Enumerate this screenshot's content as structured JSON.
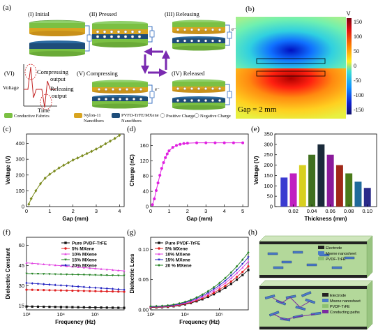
{
  "panels": {
    "a": {
      "label": "(a)",
      "stages": [
        "(I) Initial",
        "(II) Pressed",
        "(III) Releasing",
        "(IV) Released",
        "(V) Compressing",
        "(VI)"
      ],
      "signal": {
        "compressing": "Compressing\noutput",
        "releasing": "Releasing\noutput",
        "voltage": "Voltage",
        "time": "Time"
      },
      "electron": "e⁻",
      "legend": {
        "items": [
          {
            "label": "Conductive Fabrics",
            "color": "#7bc043"
          },
          {
            "label": "Nylon-11\nNanofibers",
            "color": "#d8a41f"
          },
          {
            "label": "PVFD-TrFE/MXene\nNanofibers",
            "color": "#1e4d7a"
          },
          {
            "label": "Positive Charge",
            "color": "#ffffff"
          },
          {
            "label": "Negative Charge",
            "color": "#ffffff"
          }
        ]
      }
    },
    "b": {
      "label": "(b)",
      "caption": "Gap = 2 mm",
      "colorbar": {
        "unit": "V",
        "ticks": [
          "150",
          "100",
          "50",
          "0",
          "-50",
          "-100",
          "-150"
        ]
      }
    },
    "c": {
      "label": "(c)"
    },
    "d": {
      "label": "(d)"
    },
    "e": {
      "label": "(e)"
    },
    "f": {
      "label": "(f)"
    },
    "g": {
      "label": "(g)"
    },
    "h": {
      "label": "(h)",
      "legend_top": [
        "Electrode",
        "Mxene nanosheet",
        "PVDF-TrFE"
      ],
      "legend_bottom": [
        "Electrode",
        "Mxene nanosheet",
        "PVDF-TrFE",
        "Conducting paths"
      ],
      "colors": {
        "electrode": "#222222",
        "mxene": "#4a7ac8",
        "pvdf": "#b3d89a",
        "path": "#7a2aa0"
      }
    }
  },
  "chart_data": [
    {
      "id": "c",
      "type": "line",
      "xlabel": "Gap (mm)",
      "ylabel": "Voltage (V)",
      "xlim": [
        0,
        4.2
      ],
      "ylim": [
        0,
        460
      ],
      "xticks": [
        0,
        1,
        2,
        3,
        4
      ],
      "yticks": [
        0,
        100,
        200,
        300,
        400
      ],
      "color": "#7a8a1c",
      "marker": "diamond",
      "x": [
        0.1,
        0.2,
        0.4,
        0.6,
        0.8,
        1.0,
        1.2,
        1.4,
        1.6,
        1.8,
        2.0,
        2.2,
        2.4,
        2.6,
        2.8,
        3.0,
        3.2,
        3.4,
        3.6,
        3.8,
        4.0
      ],
      "y": [
        15,
        50,
        100,
        145,
        180,
        205,
        225,
        245,
        262,
        278,
        295,
        308,
        322,
        336,
        350,
        365,
        380,
        398,
        415,
        432,
        452
      ]
    },
    {
      "id": "d",
      "type": "line",
      "xlabel": "Gap (mm)",
      "ylabel": "Charge (nC)",
      "xlim": [
        0,
        5.3
      ],
      "ylim": [
        0,
        190
      ],
      "xticks": [
        0,
        1,
        2,
        3,
        4,
        5
      ],
      "yticks": [
        0,
        40,
        80,
        120,
        160
      ],
      "color": "#e020e0",
      "marker": "circle",
      "x": [
        0.1,
        0.2,
        0.3,
        0.4,
        0.5,
        0.6,
        0.7,
        0.8,
        0.9,
        1.0,
        1.2,
        1.4,
        1.6,
        1.8,
        2.0,
        2.5,
        3.0,
        3.5,
        4.0,
        4.5,
        5.0
      ],
      "y": [
        5,
        20,
        42,
        62,
        82,
        100,
        115,
        128,
        138,
        146,
        155,
        160,
        163,
        165,
        166,
        167,
        167,
        167,
        167,
        167,
        167
      ]
    },
    {
      "id": "e",
      "type": "bar",
      "xlabel": "Thickness (mm)",
      "ylabel": "Voltage (V)",
      "ylim": [
        0,
        350
      ],
      "yticks": [
        0,
        50,
        100,
        150,
        200,
        250,
        300,
        350
      ],
      "xticklabels": [
        "0.02",
        "0.04",
        "0.06",
        "0.08",
        "0.10"
      ],
      "values": [
        140,
        160,
        200,
        250,
        300,
        250,
        200,
        160,
        120,
        90
      ],
      "colors": [
        "#3a3ad0",
        "#c020c0",
        "#d8d020",
        "#407020",
        "#1a2a3a",
        "#8a1a9a",
        "#a02818",
        "#4a7a1a",
        "#1f6a9a",
        "#2a2a8a"
      ]
    },
    {
      "id": "f",
      "type": "line",
      "xlabel": "Frequency (Hz)",
      "ylabel": "Dielectric Constant",
      "xlog": true,
      "xlim": [
        1000,
        700000
      ],
      "ylim": [
        12,
        66
      ],
      "xticks": [
        "10³",
        "10⁴",
        "10⁵"
      ],
      "yticks": [
        15,
        30,
        45,
        60
      ],
      "legend": "top-right",
      "series": [
        {
          "name": "Pure PVDF-TrFE",
          "color": "#111111",
          "marker": "square",
          "start": 14.5,
          "end": 13.5
        },
        {
          "name": "5% MXene",
          "color": "#e02020",
          "marker": "circle",
          "start": 27,
          "end": 25.5
        },
        {
          "name": "10% MXene",
          "color": "#e040e0",
          "marker": "triangle",
          "start": 47,
          "end": 41
        },
        {
          "name": "15% MXene",
          "color": "#208020",
          "marker": "triangle-down",
          "start": 39,
          "end": 37.5
        },
        {
          "name": "20% MXene",
          "color": "#2020c0",
          "marker": "diamond",
          "start": 32,
          "end": 27
        }
      ]
    },
    {
      "id": "g",
      "type": "line",
      "xlabel": "Frequency (Hz)",
      "ylabel": "Dielectric Loss",
      "xlog": true,
      "xlim": [
        1000,
        700000
      ],
      "ylim": [
        0,
        0.12
      ],
      "xticks": [
        "10³",
        "10⁴",
        "10⁵"
      ],
      "yticks": [
        0.0,
        0.05,
        0.1
      ],
      "ytickLabels": [
        "0.00",
        "0.05",
        "0.10"
      ],
      "legend": "top-left",
      "series": [
        {
          "name": "Pure PVDF-TrFE",
          "color": "#111111",
          "marker": "square",
          "start": 0.004,
          "end": 0.066
        },
        {
          "name": "5% MXene",
          "color": "#e02020",
          "marker": "circle",
          "start": 0.0045,
          "end": 0.072
        },
        {
          "name": "10% MXene",
          "color": "#e040e0",
          "marker": "triangle",
          "start": 0.005,
          "end": 0.08
        },
        {
          "name": "15% MXene",
          "color": "#2020c0",
          "marker": "triangle-down",
          "start": 0.0055,
          "end": 0.087
        },
        {
          "name": "20 % MXene",
          "color": "#208020",
          "marker": "diamond",
          "start": 0.006,
          "end": 0.095
        }
      ]
    }
  ]
}
